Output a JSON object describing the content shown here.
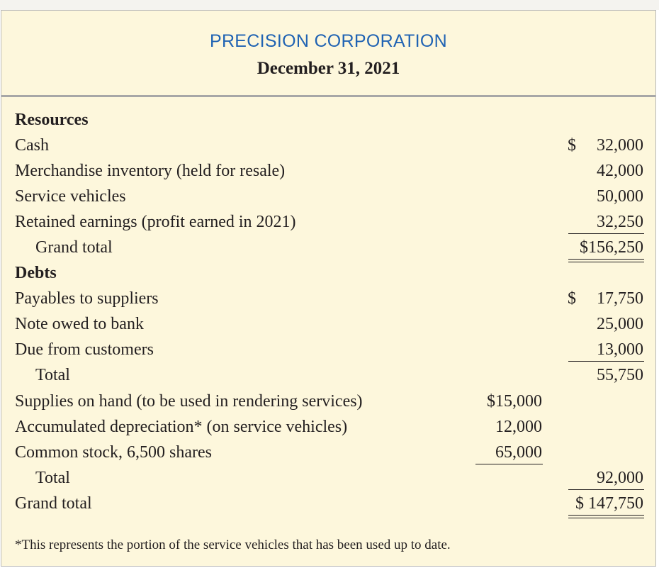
{
  "header": {
    "company": "PRECISION CORPORATION",
    "date": "December 31, 2021"
  },
  "resources": {
    "heading": "Resources",
    "items": [
      {
        "label": "Cash",
        "amount": "32,000",
        "dollar": "$"
      },
      {
        "label": "Merchandise inventory (held for resale)",
        "amount": "42,000"
      },
      {
        "label": "Service vehicles",
        "amount": "50,000"
      },
      {
        "label": "Retained earnings (profit earned in 2021)",
        "amount": "32,250"
      }
    ],
    "grand_total_label": "Grand total",
    "grand_total_amount": "$156,250"
  },
  "debts": {
    "heading": "Debts",
    "items": [
      {
        "label": "Payables to suppliers",
        "amount": "17,750",
        "dollar": "$"
      },
      {
        "label": "Note owed to bank",
        "amount": "25,000"
      },
      {
        "label": "Due from customers",
        "amount": "13,000"
      }
    ],
    "total_label": "Total",
    "total_amount": "55,750"
  },
  "other": {
    "items": [
      {
        "label": "Supplies on hand (to be used in rendering services)",
        "amount": "$15,000"
      },
      {
        "label": "Accumulated depreciation* (on service vehicles)",
        "amount": "12,000"
      },
      {
        "label": "Common stock, 6,500 shares",
        "amount": "65,000"
      }
    ],
    "total_label": "Total",
    "total_amount": "92,000",
    "grand_total_label": "Grand total",
    "grand_total_amount": "$ 147,750"
  },
  "footnote": "*This represents the portion of the service vehicles that has been used up to date."
}
